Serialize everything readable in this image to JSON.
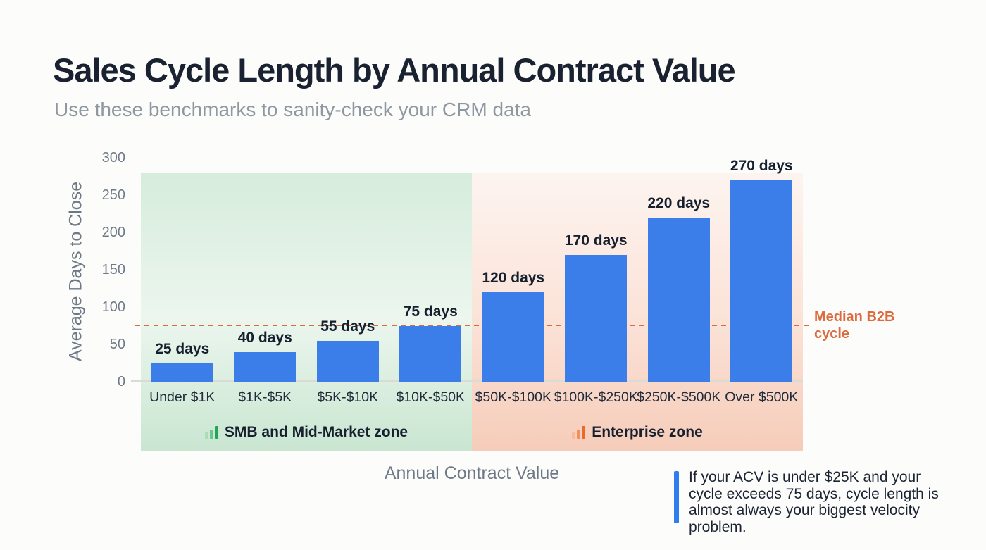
{
  "header": {
    "title": "Sales Cycle Length by Annual Contract Value",
    "subtitle": "Use these benchmarks to sanity-check your CRM data"
  },
  "chart_data": {
    "type": "bar",
    "title": "Sales Cycle Length by Annual Contract Value",
    "xlabel": "Annual Contract Value",
    "ylabel": "Average Days to Close",
    "categories": [
      "Under $1K",
      "$1K-$5K",
      "$5K-$10K",
      "$10K-$50K",
      "$50K-$100K",
      "$100K-$250K",
      "$250K-$500K",
      "Over $500K"
    ],
    "values": [
      25,
      40,
      55,
      75,
      120,
      170,
      220,
      270
    ],
    "value_labels": [
      "25 days",
      "40 days",
      "55 days",
      "75 days",
      "120 days",
      "170 days",
      "220 days",
      "270 days"
    ],
    "ylim": [
      0,
      300
    ],
    "yticks": [
      0,
      50,
      100,
      150,
      200,
      250,
      300
    ],
    "grid": false,
    "legend_position": "none",
    "bar_color": "#3b7de9",
    "reference_line": {
      "value": 75,
      "label": "Median B2B cycle",
      "color": "#dd6a3e",
      "style": "dashed"
    },
    "zones": [
      {
        "id": "smb",
        "label": "SMB and Mid-Market zone",
        "start_category": 0,
        "end_category": 3,
        "gradient_top": "#d6ecdc",
        "gradient_mid": "#ecf6ee",
        "gradient_bottom": "#c9e6d1",
        "icon_colors": [
          "#a9ddb5",
          "#6cc687",
          "#22a559"
        ]
      },
      {
        "id": "enterprise",
        "label": "Enterprise zone",
        "start_category": 4,
        "end_category": 7,
        "gradient_top": "#fdf4f0",
        "gradient_mid": "#fbe3d8",
        "gradient_bottom": "#f6ccb9",
        "icon_colors": [
          "#f7bb9b",
          "#f0915c",
          "#e76a2e"
        ]
      }
    ]
  },
  "callout": {
    "text": "If your ACV is under $25K and your cycle exceeds 75 days, cycle length is almost always your biggest velocity problem.",
    "accent_color": "#2e7ef0"
  },
  "colors": {
    "background": "#fcfcfa",
    "title_text": "#1a2231",
    "subtitle_text": "#8f97a1",
    "axis_text": "#6e7987",
    "category_text": "#212b3a",
    "value_label_text": "#15202f",
    "zone_label_text": "#17202f",
    "bar_blue": "#3b7de9",
    "median_orange": "#dd6a3e",
    "baseline_gray": "#d8dbd7",
    "callout_accent": "#2e7ef0",
    "callout_text": "#1c2434"
  }
}
